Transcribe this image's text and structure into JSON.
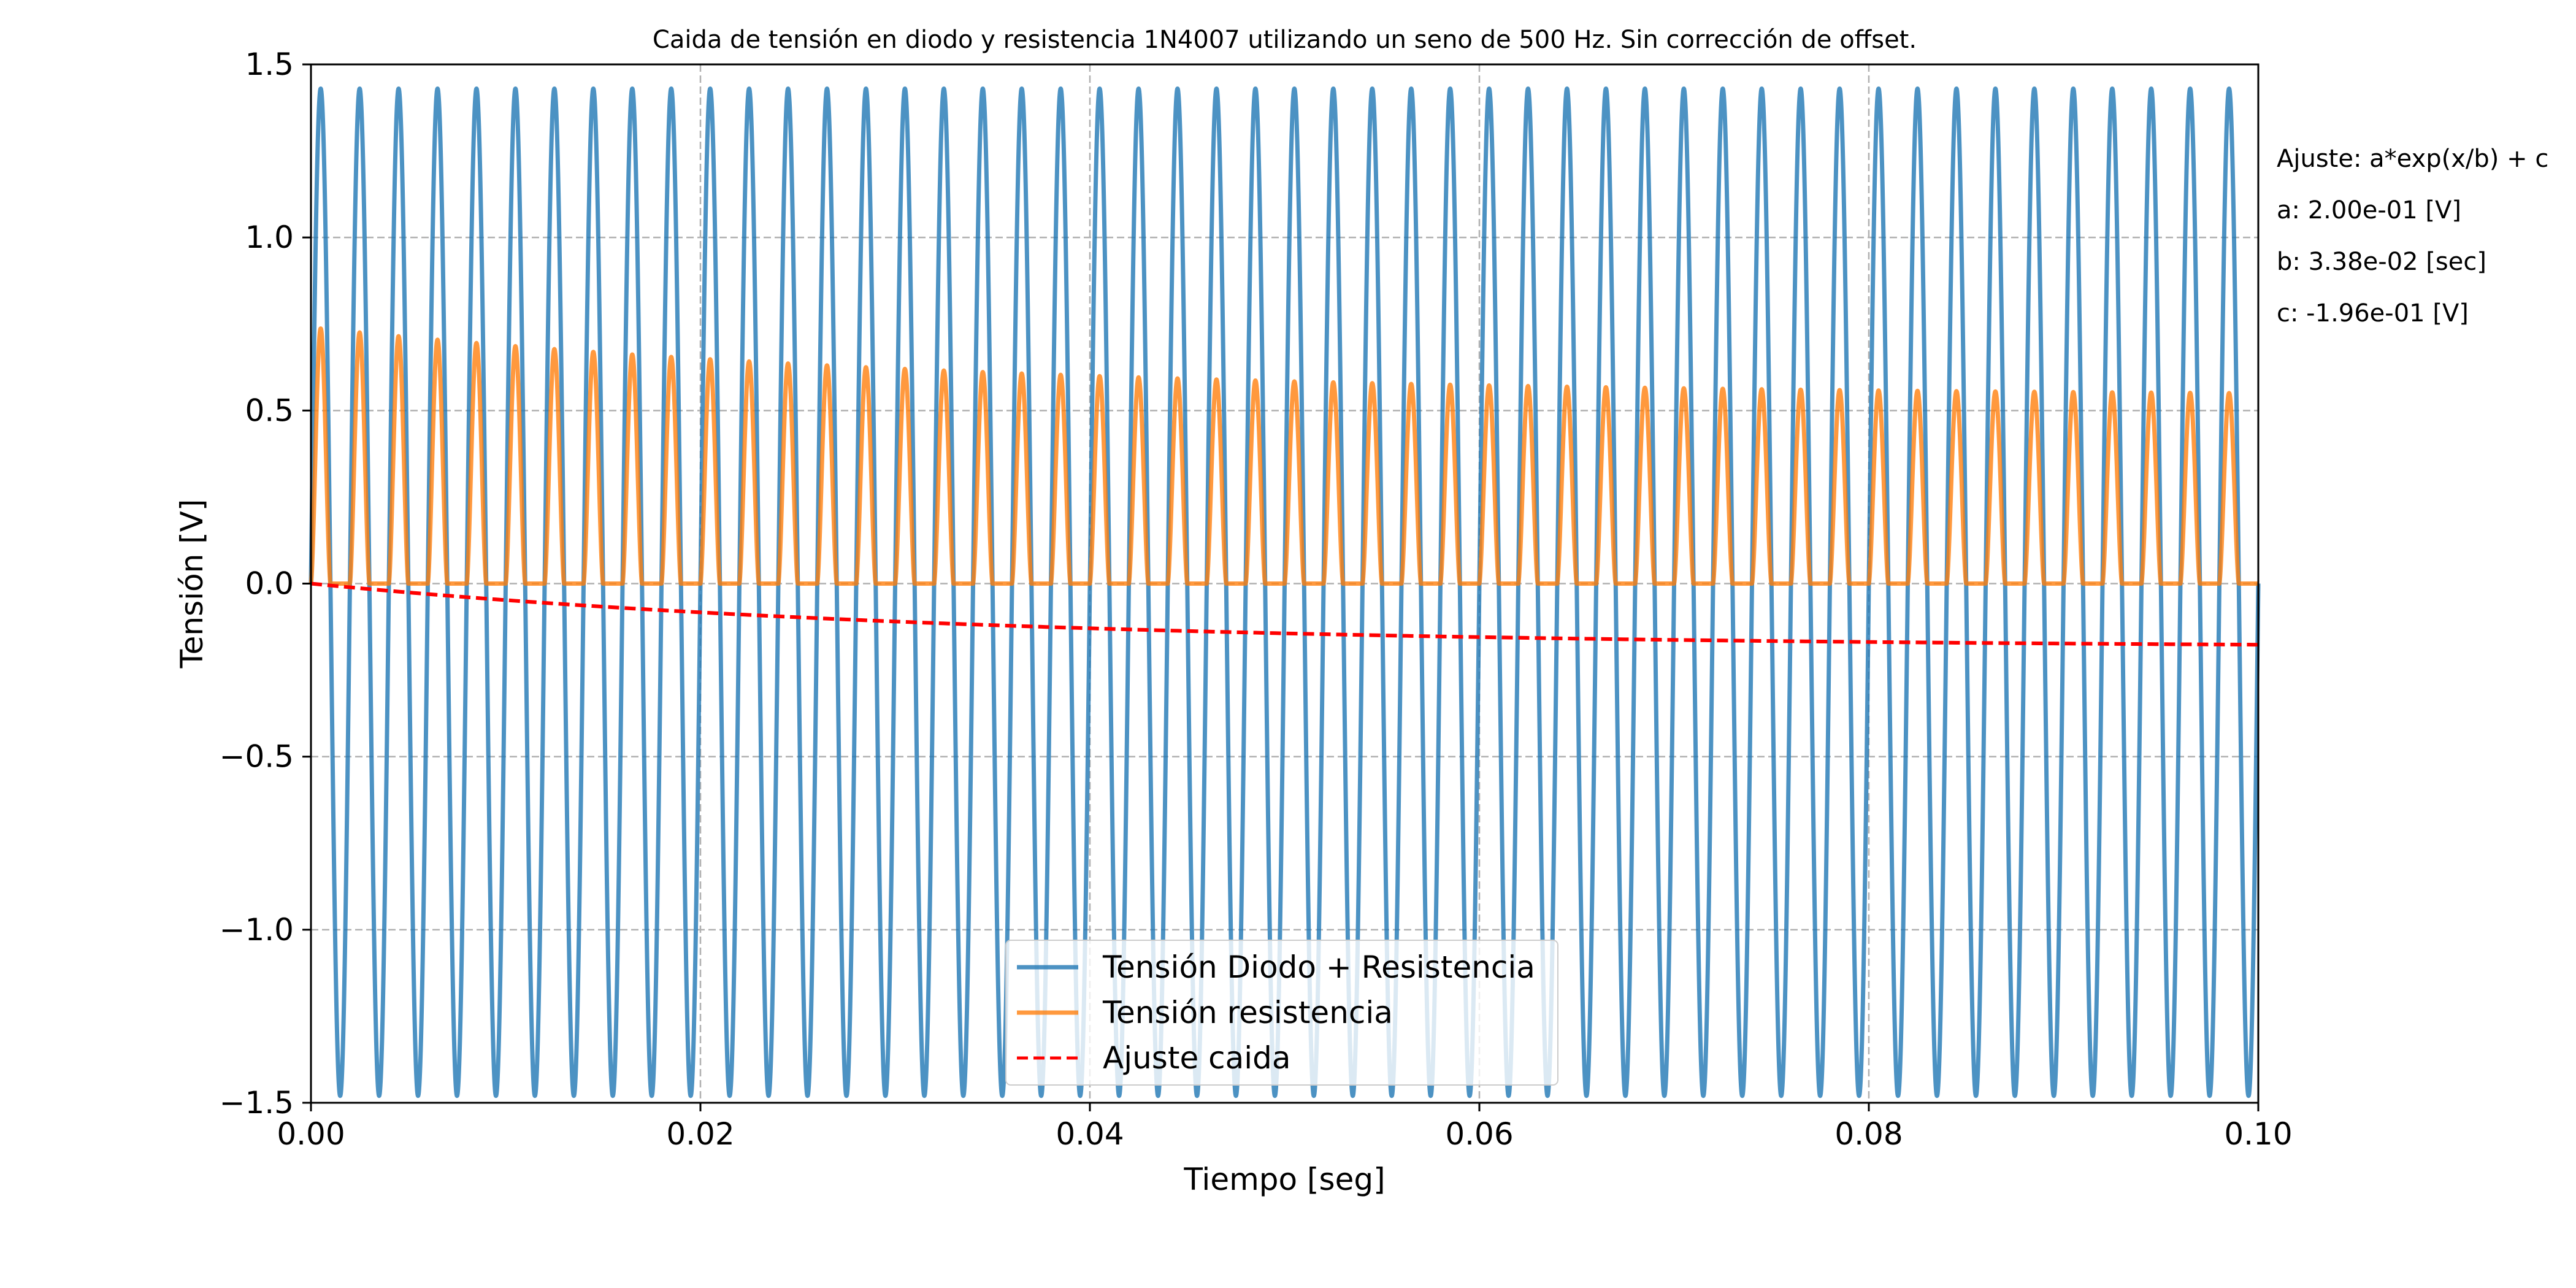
{
  "chart_data": {
    "type": "line",
    "title": "Caida de tensión en diodo y resistencia 1N4007 utilizando un seno de 500 Hz. Sin corrección de offset.",
    "xlabel": "Tiempo [seg]",
    "ylabel": "Tensión [V]",
    "xlim": [
      0.0,
      0.1
    ],
    "ylim": [
      -1.5,
      1.5
    ],
    "x_ticks": [
      0.0,
      0.02,
      0.04,
      0.06,
      0.08,
      0.1
    ],
    "x_tick_labels": [
      "0.00",
      "0.02",
      "0.04",
      "0.06",
      "0.08",
      "0.10"
    ],
    "y_ticks": [
      -1.5,
      -1.0,
      -0.5,
      0.0,
      0.5,
      1.0,
      1.5
    ],
    "y_tick_labels": [
      "−1.5",
      "−1.0",
      "−0.5",
      "0.0",
      "0.5",
      "1.0",
      "1.5"
    ],
    "grid": true,
    "legend_position": "bottom-center",
    "series": [
      {
        "name": "Tensión Diodo + Resistencia",
        "color": "#1f77b4",
        "style": "solid",
        "frequency_hz": 500,
        "amplitude_max": 1.43,
        "amplitude_min": -1.48
      },
      {
        "name": "Tensión resistencia",
        "color": "#ff7f0e",
        "style": "solid",
        "peak_start": 0.74,
        "peak_end": 0.55
      },
      {
        "name": "Ajuste caida",
        "color": "#ff0000",
        "style": "dashed",
        "fit": {
          "a": 0.2,
          "b": 0.0338,
          "c": -0.196
        }
      }
    ],
    "annotations": [
      "Ajuste: a*exp(x/b) + c",
      "a: 2.00e-01 [V]",
      "b: 3.38e-02 [sec]",
      "c: -1.96e-01 [V]"
    ]
  }
}
